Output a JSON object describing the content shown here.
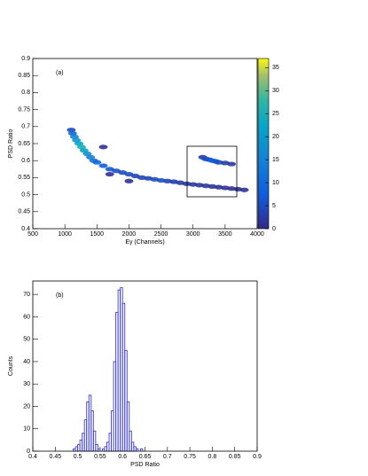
{
  "chart_data": [
    {
      "type": "heatmap",
      "panel_label": "(a)",
      "xlabel": "Eγ (Channels)",
      "ylabel": "PSD Ratio",
      "xlim": [
        500,
        4000
      ],
      "xticks": [
        500,
        1000,
        1500,
        2000,
        2500,
        3000,
        3500,
        4000
      ],
      "ylim": [
        0.4,
        0.9
      ],
      "yticks": [
        0.4,
        0.45,
        0.5,
        0.55,
        0.6,
        0.65,
        0.7,
        0.75,
        0.8,
        0.85,
        0.9
      ],
      "zlim": [
        0,
        37
      ],
      "zticks": [
        0,
        5,
        10,
        15,
        20,
        25,
        30,
        35
      ],
      "x": [
        1100,
        1120,
        1150,
        1180,
        1220,
        1260,
        1300,
        1350,
        1400,
        1450,
        1500,
        1600,
        1700,
        1800,
        1900,
        2000,
        2100,
        2200,
        2300,
        2400,
        2500,
        2600,
        2700,
        2800,
        2900,
        3000,
        3100,
        3200,
        3300,
        3400,
        3500,
        3600,
        3700,
        3800,
        3150,
        3200,
        3250,
        3300,
        3350,
        3400,
        3500,
        3600,
        1600,
        1700,
        2000
      ],
      "y": [
        0.69,
        0.68,
        0.67,
        0.66,
        0.65,
        0.64,
        0.63,
        0.62,
        0.61,
        0.6,
        0.595,
        0.585,
        0.575,
        0.57,
        0.565,
        0.56,
        0.555,
        0.55,
        0.548,
        0.545,
        0.542,
        0.54,
        0.538,
        0.535,
        0.532,
        0.53,
        0.528,
        0.526,
        0.524,
        0.522,
        0.52,
        0.518,
        0.516,
        0.514,
        0.61,
        0.605,
        0.603,
        0.6,
        0.598,
        0.595,
        0.593,
        0.59,
        0.64,
        0.56,
        0.54
      ],
      "values": [
        5,
        10,
        15,
        20,
        22,
        25,
        22,
        18,
        14,
        12,
        10,
        8,
        7,
        6,
        5,
        5,
        4,
        4,
        4,
        5,
        6,
        4,
        3,
        3,
        2,
        2,
        2,
        2,
        2,
        1,
        1,
        1,
        1,
        1,
        3,
        5,
        6,
        8,
        7,
        5,
        3,
        2,
        1,
        1,
        1
      ]
    },
    {
      "type": "histogram",
      "panel_label": "(b)",
      "xlabel": "PSD Ratio",
      "ylabel": "Counts",
      "color": "#3c3cdc",
      "xlim": [
        0.4,
        0.9
      ],
      "xticks": [
        0.4,
        0.45,
        0.5,
        0.55,
        0.6,
        0.65,
        0.7,
        0.75,
        0.8,
        0.85,
        0.9
      ],
      "ylim": [
        0,
        76
      ],
      "yticks": [
        0,
        10,
        20,
        30,
        40,
        50,
        60,
        70
      ],
      "bins": [
        0.49,
        0.495,
        0.5,
        0.505,
        0.51,
        0.515,
        0.52,
        0.525,
        0.53,
        0.535,
        0.54,
        0.545,
        0.55,
        0.555,
        0.56,
        0.565,
        0.57,
        0.575,
        0.58,
        0.585,
        0.59,
        0.595,
        0.6,
        0.605,
        0.61,
        0.615,
        0.62,
        0.625,
        0.63,
        0.635,
        0.64,
        0.645,
        0.65
      ],
      "values": [
        1,
        2,
        3,
        5,
        8,
        14,
        22,
        25,
        18,
        9,
        3,
        1,
        0,
        1,
        2,
        4,
        8,
        18,
        40,
        62,
        72,
        73,
        66,
        45,
        22,
        9,
        4,
        2,
        1,
        0,
        1,
        0
      ]
    }
  ]
}
